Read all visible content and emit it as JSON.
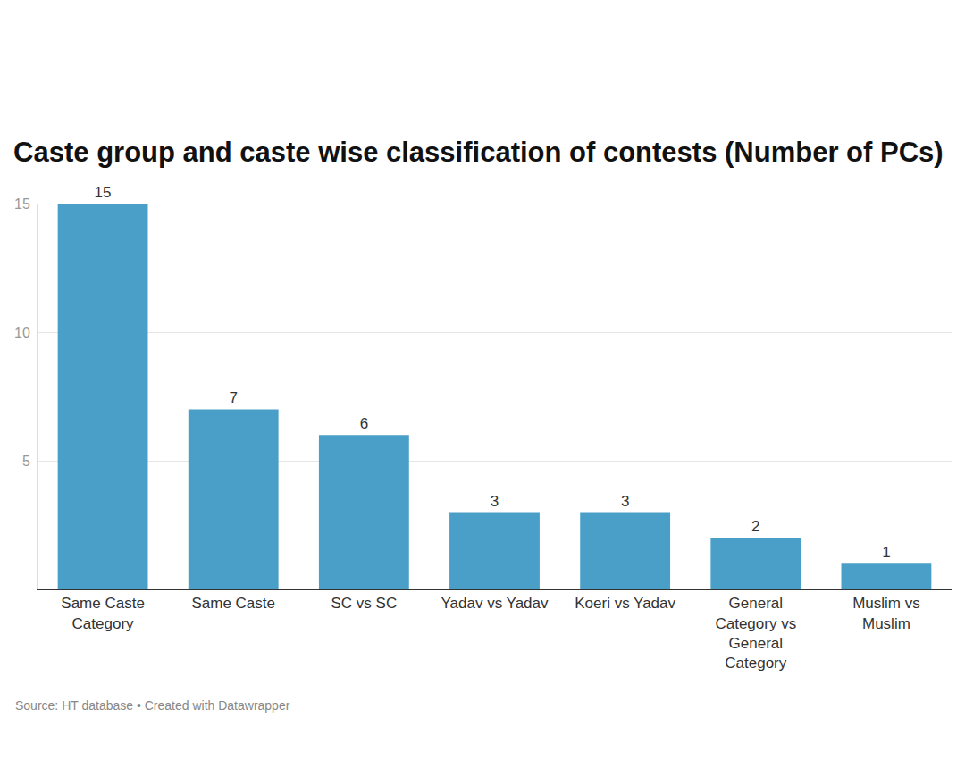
{
  "chart_data": {
    "type": "bar",
    "title": "Caste group and caste wise classification of contests (Number of PCs)",
    "categories": [
      "Same Caste Category",
      "Same Caste",
      "SC vs SC",
      "Yadav vs Yadav",
      "Koeri vs Yadav",
      "General Category vs General Category",
      "Muslim vs Muslim"
    ],
    "values": [
      15,
      7,
      6,
      3,
      3,
      2,
      1
    ],
    "color": "#4a9fc8",
    "ylim": [
      0,
      15
    ],
    "yticks": [
      5,
      10,
      15
    ],
    "grid": true,
    "data_labels": true,
    "source": "Source: HT database • Created with Datawrapper"
  }
}
